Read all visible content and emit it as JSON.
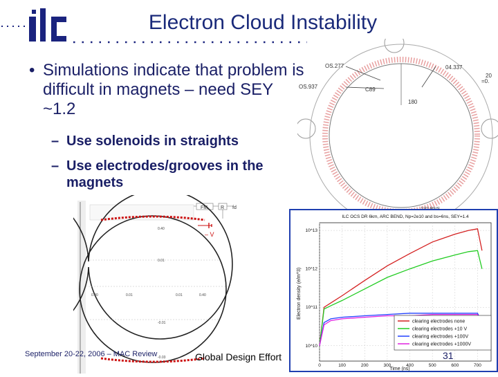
{
  "slide": {
    "title": "Electron Cloud Instability",
    "bullet": "Simulations indicate that problem is difficult in magnets – need SEY ~1.2",
    "sub_bullets": [
      "Use solenoids in straights",
      "Use electrodes/grooves in the magnets"
    ],
    "footer_date": "September 20-22, 2006 – MAC Review",
    "footer_center": "Global Design Effort",
    "page_number": "31"
  },
  "diagram_right": {
    "labels": [
      "OS.277",
      "OS.937",
      "C89",
      "180",
      "04.337",
      "=0.",
      "20",
      "132 BNS"
    ]
  },
  "diagram_left": {
    "tick_labels": [
      "0.40",
      "0.01",
      "0.00",
      "-0.01",
      "0.01",
      "0.01",
      "0.40",
      "-0.03"
    ],
    "toolbar_labels": [
      "FM",
      "R",
      "fd"
    ],
    "voltage_label": "– V"
  },
  "chart_data": {
    "type": "line",
    "title": "ILC OCS DR 6km, ARC BEND, Np=2e10 and bs=6ns, SEY=1.4",
    "xlabel": "Time (ns)",
    "ylabel": "Electron density (e/m^3)",
    "x_ticks": [
      "0",
      "100",
      "200",
      "300",
      "400",
      "500",
      "600",
      "700"
    ],
    "y_ticks": [
      "10^10",
      "10^11",
      "10^12",
      "10^13"
    ],
    "xlim": [
      0,
      760
    ],
    "ylim_log10": [
      9.6,
      13.2
    ],
    "log_y": true,
    "legend_position": "bottom-right",
    "series": [
      {
        "name": "clearing electrodes none",
        "color": "#d42020",
        "x": [
          0,
          20,
          50,
          100,
          200,
          300,
          400,
          500,
          600,
          660,
          700,
          720
        ],
        "y": [
          10000000000.0,
          100000000000.0,
          130000000000.0,
          200000000000.0,
          500000000000.0,
          1200000000000.0,
          2500000000000.0,
          5000000000000.0,
          8000000000000.0,
          10000000000000.0,
          11000000000000.0,
          3000000000000.0
        ]
      },
      {
        "name": "clearing electrodes +10 V",
        "color": "#22cc22",
        "x": [
          0,
          20,
          50,
          100,
          200,
          300,
          400,
          500,
          600,
          660,
          700,
          720
        ],
        "y": [
          10000000000.0,
          90000000000.0,
          110000000000.0,
          150000000000.0,
          300000000000.0,
          600000000000.0,
          1000000000000.0,
          1600000000000.0,
          2300000000000.0,
          2800000000000.0,
          3000000000000.0,
          1000000000000.0
        ]
      },
      {
        "name": "clearing electrodes +100V",
        "color": "#2040ff",
        "x": [
          0,
          20,
          50,
          100,
          200,
          300,
          400,
          500,
          600,
          660,
          700,
          720
        ],
        "y": [
          10000000000.0,
          40000000000.0,
          50000000000.0,
          55000000000.0,
          60000000000.0,
          65000000000.0,
          70000000000.0,
          70000000000.0,
          70000000000.0,
          70000000000.0,
          70000000000.0,
          40000000000.0
        ]
      },
      {
        "name": "clearing electrodes +1000V",
        "color": "#e020e0",
        "x": [
          0,
          20,
          50,
          100,
          200,
          300,
          400,
          500,
          600,
          660,
          700,
          720
        ],
        "y": [
          10000000000.0,
          35000000000.0,
          45000000000.0,
          50000000000.0,
          55000000000.0,
          60000000000.0,
          60000000000.0,
          65000000000.0,
          65000000000.0,
          65000000000.0,
          65000000000.0,
          40000000000.0
        ]
      }
    ]
  }
}
